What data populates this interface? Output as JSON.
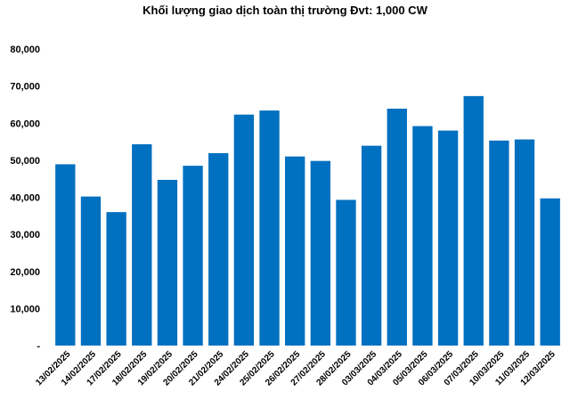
{
  "chart_data": {
    "type": "bar",
    "title": "Khối lượng giao dịch toàn thị trường Đvt: 1,000 CW",
    "xlabel": "",
    "ylabel": "",
    "ylim": [
      0,
      80000
    ],
    "yticks": [
      0,
      10000,
      20000,
      30000,
      40000,
      50000,
      60000,
      70000,
      80000
    ],
    "ytick_labels": [
      "-",
      "10,000",
      "20,000",
      "30,000",
      "40,000",
      "50,000",
      "60,000",
      "70,000",
      "80,000"
    ],
    "grid": false,
    "legend": "none",
    "bar_color": "#0070c0",
    "categories": [
      "13/02/2025",
      "14/02/2025",
      "17/02/2025",
      "18/02/2025",
      "19/02/2025",
      "20/02/2025",
      "21/02/2025",
      "24/02/2025",
      "25/02/2025",
      "26/02/2025",
      "27/02/2025",
      "28/02/2025",
      "03/03/2025",
      "04/03/2025",
      "05/03/2025",
      "06/03/2025",
      "07/03/2025",
      "10/03/2025",
      "11/03/2025",
      "12/03/2025"
    ],
    "values": [
      48900,
      40200,
      36000,
      54300,
      44700,
      48500,
      51900,
      62300,
      63400,
      51000,
      49800,
      39300,
      53900,
      63900,
      59200,
      58000,
      67300,
      55300,
      55600,
      39700
    ]
  }
}
